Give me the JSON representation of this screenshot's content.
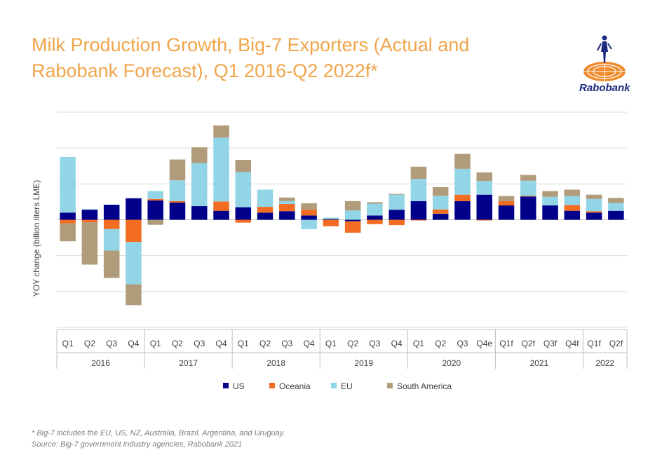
{
  "header": {
    "title_line1": "Milk Production Growth, Big-7 Exporters (Actual and",
    "title_line2": "Rabobank Forecast), Q1 2016-Q2 2022f*",
    "logo_text": "Rabobank"
  },
  "footer": {
    "note": "* Big-7 includes the EU, US, NZ, Australia, Brazil, Argentina, and Uruguay.",
    "source": "Source: Big-7 government industry agencies, Rabobank 2021"
  },
  "colors": {
    "US": "#00008b",
    "Oceania": "#f26c21",
    "EU": "#92d5e6",
    "South America": "#b09c7a",
    "grid": "#d9d9d9",
    "title": "#f0a54a"
  },
  "chart_data": {
    "type": "bar",
    "stacked": true,
    "ylabel": "YOY change (billion liters LME)",
    "ylim": [
      -3,
      3
    ],
    "y_tick_labels_shown": false,
    "grid": true,
    "legend_position": "bottom",
    "categories": [
      "Q1",
      "Q2",
      "Q3",
      "Q4",
      "Q1",
      "Q2",
      "Q3",
      "Q4",
      "Q1",
      "Q2",
      "Q3",
      "Q4",
      "Q1",
      "Q2",
      "Q3",
      "Q4",
      "Q1",
      "Q2",
      "Q3",
      "Q4e",
      "Q1f",
      "Q2f",
      "Q3f",
      "Q4f",
      "Q1f",
      "Q2f"
    ],
    "year_groups": [
      {
        "label": "2016",
        "count": 4
      },
      {
        "label": "2017",
        "count": 4
      },
      {
        "label": "2018",
        "count": 4
      },
      {
        "label": "2019",
        "count": 4
      },
      {
        "label": "2020",
        "count": 4
      },
      {
        "label": "2021",
        "count": 4
      },
      {
        "label": "2022",
        "count": 2
      }
    ],
    "series": [
      {
        "name": "US",
        "values": [
          0.2,
          0.28,
          0.42,
          0.6,
          0.54,
          0.48,
          0.38,
          0.25,
          0.35,
          0.2,
          0.24,
          0.12,
          0.02,
          -0.04,
          0.12,
          0.28,
          0.52,
          0.17,
          0.52,
          0.7,
          0.4,
          0.65,
          0.4,
          0.25,
          0.2,
          0.25
        ]
      },
      {
        "name": "Oceania",
        "values": [
          -0.1,
          -0.07,
          -0.26,
          -0.62,
          0.04,
          0.04,
          0.0,
          0.26,
          -0.08,
          0.16,
          0.2,
          0.16,
          -0.18,
          -0.32,
          -0.12,
          -0.15,
          -0.02,
          0.12,
          0.18,
          -0.02,
          0.12,
          0.02,
          0.0,
          0.16,
          0.04,
          0.0
        ]
      },
      {
        "name": "EU",
        "values": [
          1.55,
          0.02,
          -0.6,
          -1.18,
          0.22,
          0.58,
          1.2,
          1.78,
          0.98,
          0.48,
          0.08,
          -0.26,
          0.04,
          0.26,
          0.33,
          0.42,
          0.62,
          0.38,
          0.72,
          0.38,
          0.0,
          0.42,
          0.24,
          0.25,
          0.34,
          0.22
        ]
      },
      {
        "name": "South America",
        "values": [
          -0.5,
          -1.18,
          -0.76,
          -0.58,
          -0.14,
          0.58,
          0.44,
          0.34,
          0.34,
          0.0,
          0.1,
          0.18,
          0.0,
          0.26,
          0.04,
          0.02,
          0.34,
          0.24,
          0.42,
          0.24,
          0.14,
          0.16,
          0.16,
          0.18,
          0.12,
          0.14
        ]
      }
    ]
  }
}
